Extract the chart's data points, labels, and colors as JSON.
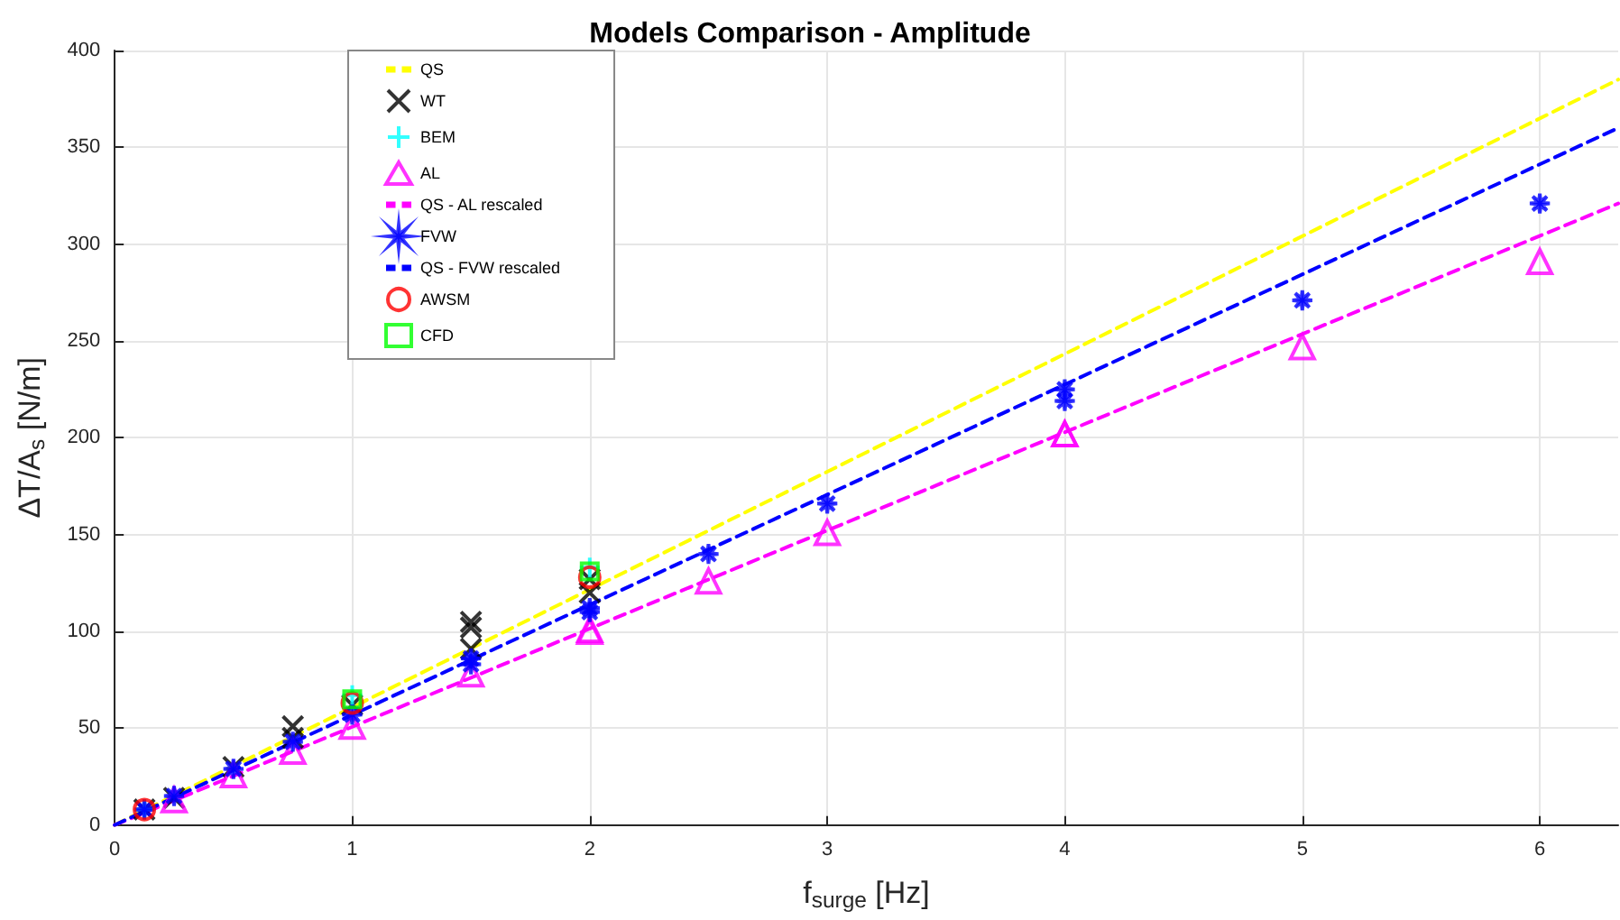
{
  "chart_data": {
    "type": "scatter",
    "title": "Models Comparison - Amplitude",
    "xlabel": "f$_{surge}$ [Hz]",
    "ylabel": "ΔT/A$_{s}$ [N/m]",
    "xlim": [
      0,
      6.33
    ],
    "xticks": [
      0,
      1,
      2,
      3,
      4,
      5,
      6
    ],
    "ylim": [
      0,
      400
    ],
    "yticks": [
      0,
      50,
      100,
      150,
      200,
      250,
      300,
      350,
      400
    ],
    "grid": true,
    "legend": "top left",
    "series": [
      {
        "name": "QS",
        "type": "line",
        "line_style": "dashed",
        "marker": "none",
        "color": "#ffff00",
        "x": [
          0,
          6.33
        ],
        "values": [
          0,
          385
        ]
      },
      {
        "name": "WT",
        "marker": "x",
        "color": "#000000",
        "x": [
          0.125,
          0.25,
          0.5,
          0.75,
          0.75,
          1,
          1.5,
          1.5,
          1.5,
          2,
          2
        ],
        "values": [
          8,
          14,
          30,
          51,
          45,
          62,
          105,
          102,
          91,
          120,
          127
        ]
      },
      {
        "name": "BEM",
        "marker": "cross",
        "color": "#00ffff",
        "x": [
          0.125,
          1,
          2
        ],
        "values": [
          8,
          67,
          133
        ]
      },
      {
        "name": "AL",
        "marker": "triangle",
        "color": "#ff00ff",
        "x": [
          0.25,
          0.5,
          0.75,
          1,
          1.5,
          2,
          2,
          2.5,
          3,
          4,
          4,
          5,
          6
        ],
        "values": [
          13,
          26,
          38,
          51,
          78,
          101,
          100,
          126,
          151,
          202,
          202,
          247,
          291
        ]
      },
      {
        "name": "QS - AL rescaled",
        "type": "line",
        "line_style": "dashed",
        "marker": "none",
        "color": "#ff00ff",
        "x": [
          0,
          6.33
        ],
        "values": [
          0,
          321
        ]
      },
      {
        "name": "FVW",
        "marker": "star",
        "color": "#0000ff",
        "x": [
          0.125,
          0.25,
          0.5,
          0.75,
          1,
          1.5,
          1.5,
          2,
          2,
          2.5,
          3,
          4,
          4,
          5,
          6
        ],
        "values": [
          8,
          15,
          29,
          43,
          57,
          86,
          83,
          112,
          110,
          140,
          166,
          225,
          219,
          271,
          321
        ]
      },
      {
        "name": "QS - FVW rescaled",
        "type": "line",
        "line_style": "dashed",
        "marker": "none",
        "color": "#0000ff",
        "x": [
          0,
          6.33
        ],
        "values": [
          0,
          360
        ]
      },
      {
        "name": "AWSM",
        "marker": "circle",
        "color": "#ff0000",
        "x": [
          0.125,
          1,
          2
        ],
        "values": [
          8,
          63,
          128
        ]
      },
      {
        "name": "CFD",
        "marker": "square",
        "color": "#00ff00",
        "x": [
          1,
          2
        ],
        "values": [
          65,
          131
        ]
      }
    ]
  }
}
